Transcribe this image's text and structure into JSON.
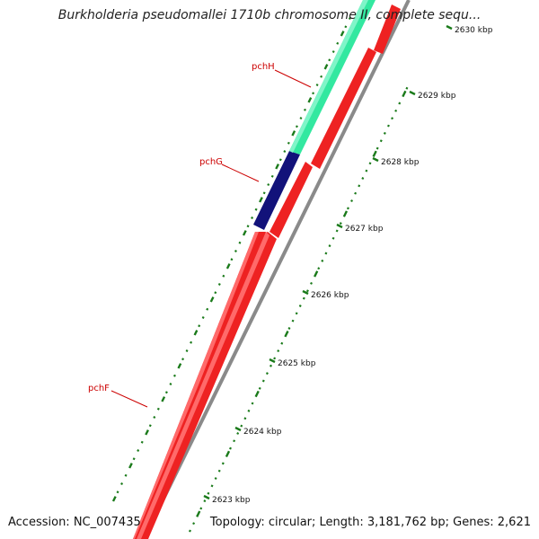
{
  "title": "Burkholderia pseudomallei 1710b chromosome II, complete sequ...",
  "footer": {
    "accession": "Accession: NC_007435",
    "summary": "Topology: circular; Length: 3,181,762 bp; Genes: 2,621"
  },
  "tick_labels": [
    "2623 kbp",
    "2624 kbp",
    "2625 kbp",
    "2626 kbp",
    "2627 kbp",
    "2628 kbp",
    "2629 kbp",
    "2630 kbp"
  ],
  "genes": [
    {
      "label": "pchH",
      "color": "#33e8a0"
    },
    {
      "label": "pchG",
      "color": "#12127a"
    },
    {
      "label": "pchF",
      "color": "#ee1111"
    }
  ],
  "colors": {
    "forward_strand": "#ee1111",
    "backbone": "#888888",
    "tick": "#1a7a1a",
    "label": "#cc0000"
  }
}
